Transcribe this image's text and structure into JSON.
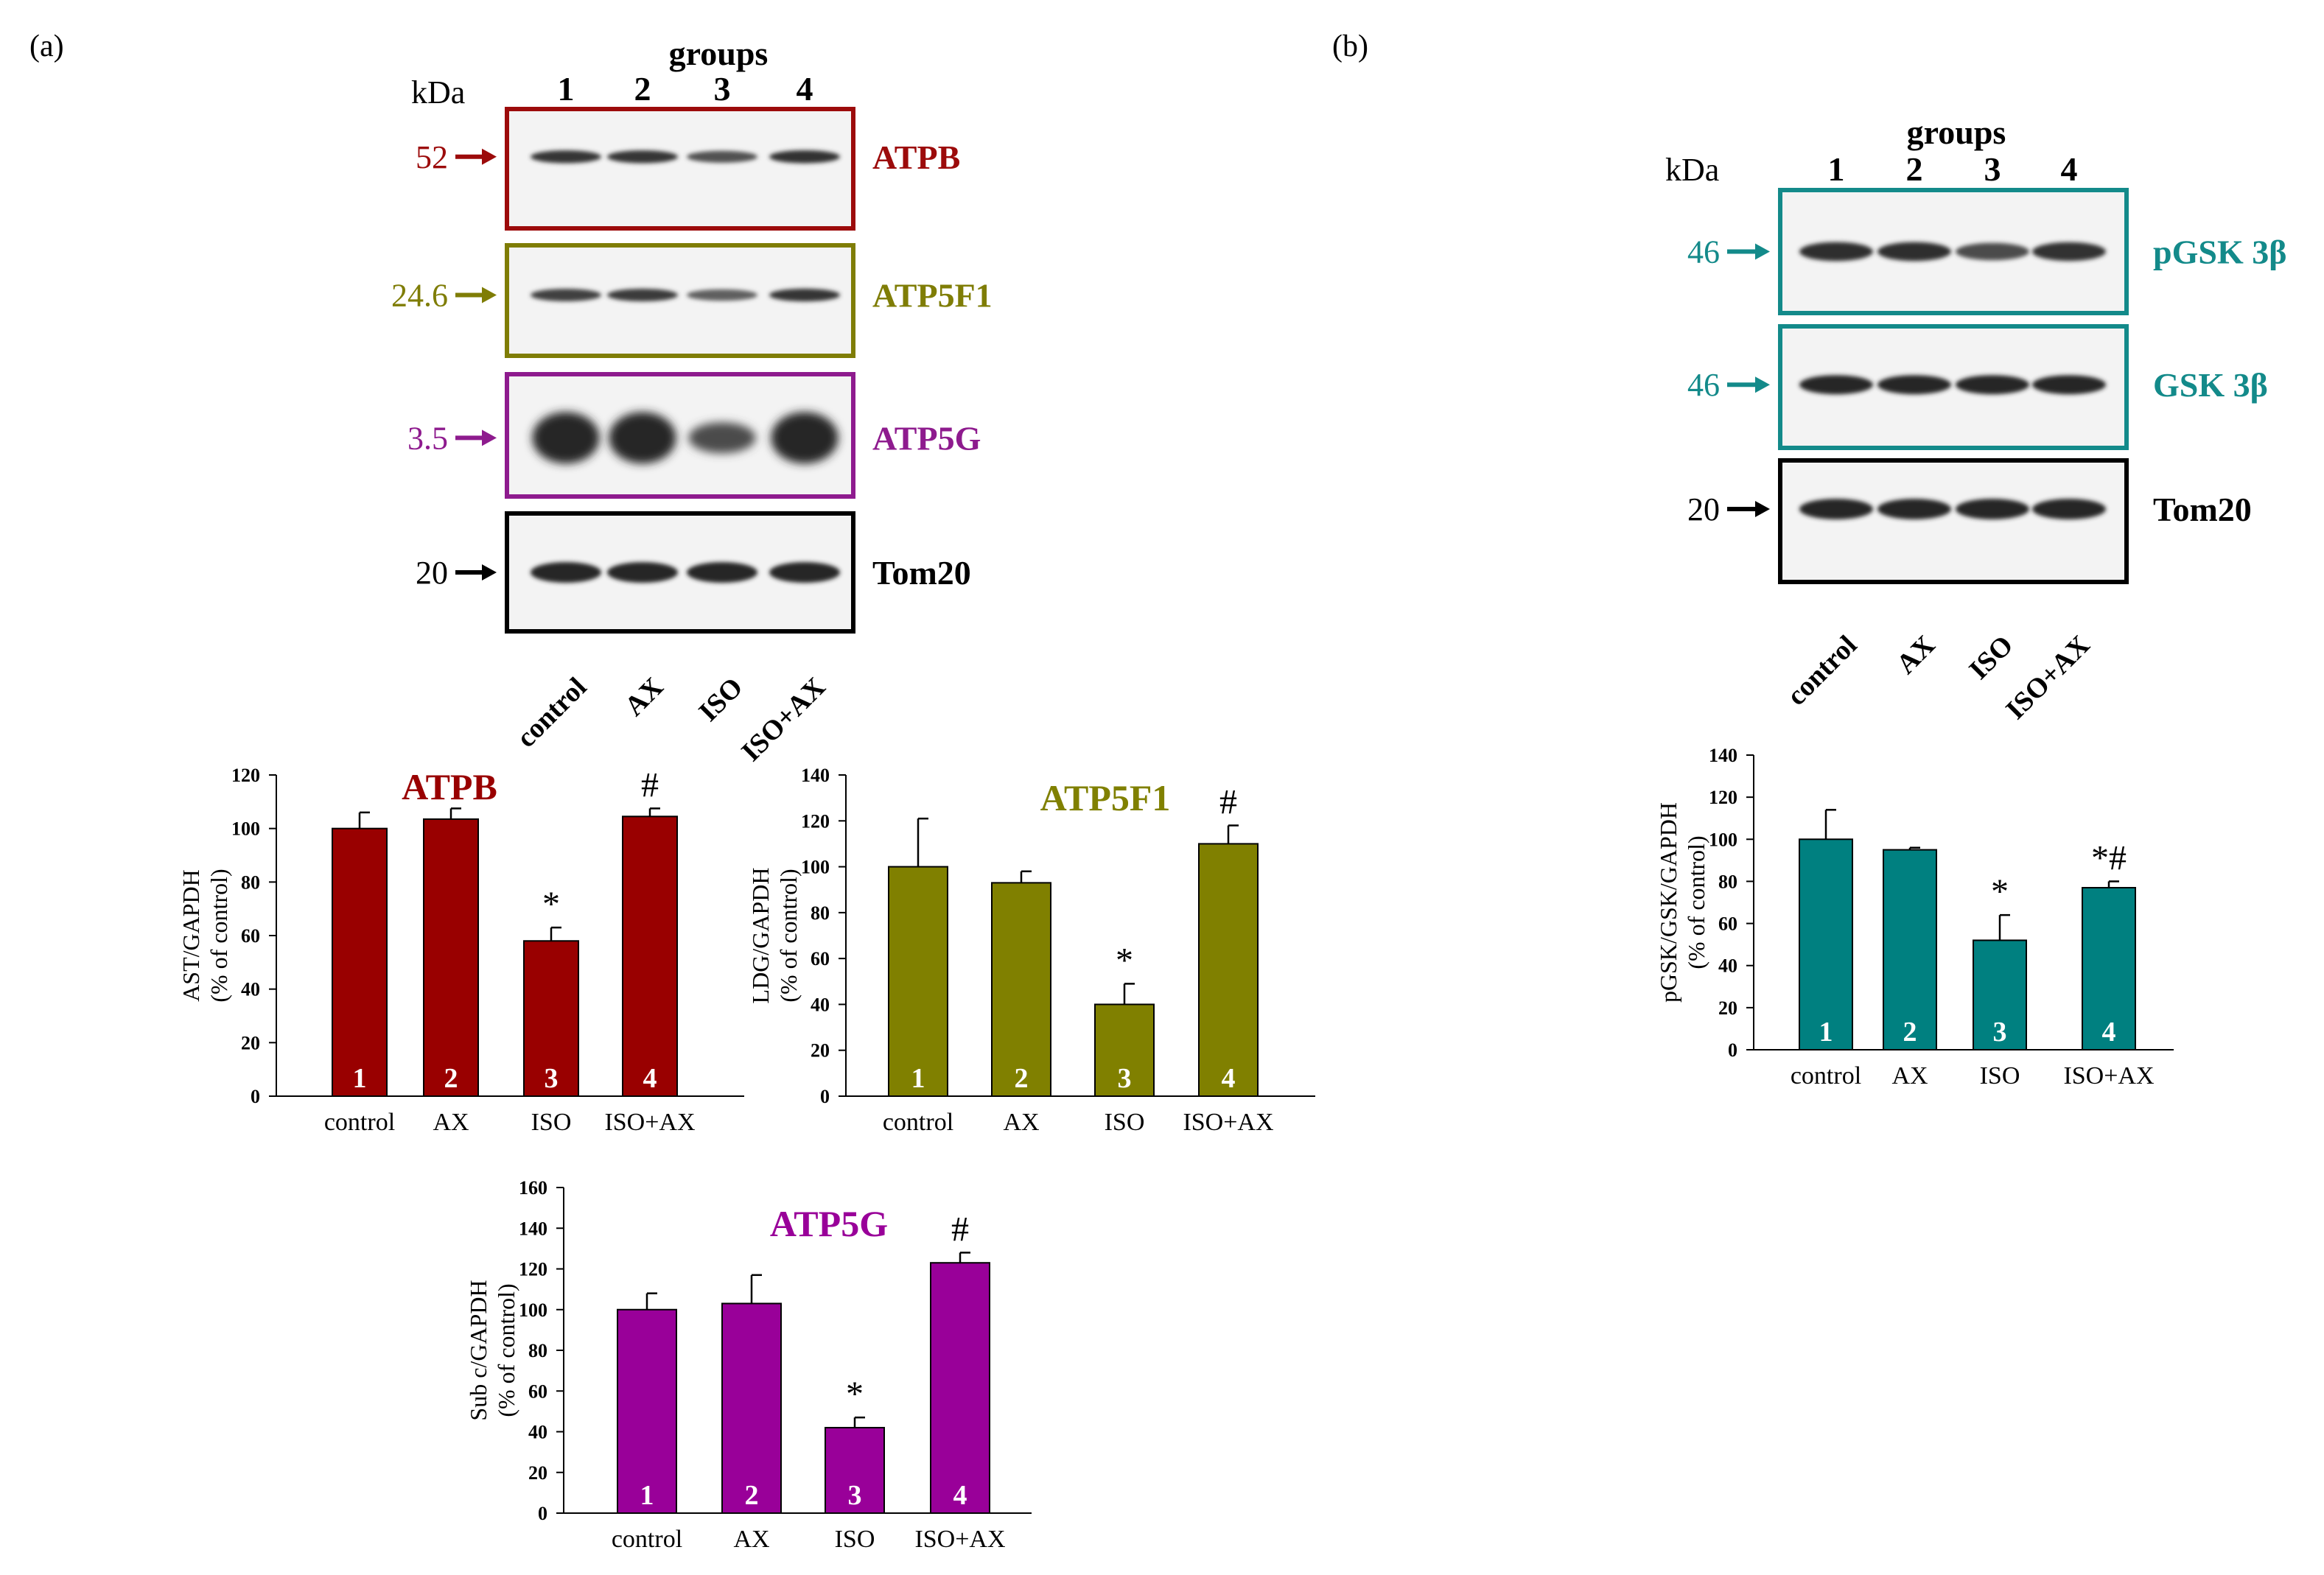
{
  "panel_a": {
    "label": "(a)",
    "kda_label": "kDa",
    "groups_label": "groups",
    "group_numbers": [
      "1",
      "2",
      "3",
      "4"
    ],
    "lane_labels": [
      "control",
      "AX",
      "ISO",
      "ISO+AX"
    ],
    "blots": [
      {
        "name": "ATPB",
        "kda": "52",
        "color": "#9c0b0b",
        "bands": [
          0.85,
          0.85,
          0.55,
          0.9
        ],
        "thickness": "thin"
      },
      {
        "name": "ATP5F1",
        "kda": "24.6",
        "color": "#7f7d06",
        "bands": [
          0.75,
          0.8,
          0.4,
          0.85
        ],
        "thickness": "thin"
      },
      {
        "name": "ATP5G",
        "kda": "3.5",
        "color": "#8e1b8e",
        "bands": [
          1.0,
          1.0,
          0.6,
          1.0
        ],
        "thickness": "blob"
      },
      {
        "name": "Tom20",
        "kda": "20",
        "color": "#000000",
        "bands": [
          1.0,
          1.0,
          1.0,
          1.0
        ],
        "thickness": "thick"
      }
    ]
  },
  "panel_b": {
    "label": "(b)",
    "kda_label": "kDa",
    "groups_label": "groups",
    "group_numbers": [
      "1",
      "2",
      "3",
      "4"
    ],
    "lane_labels": [
      "control",
      "AX",
      "ISO",
      "ISO+AX"
    ],
    "blots": [
      {
        "name": "pGSK 3β",
        "kda": "46",
        "color": "#138a8a",
        "bands": [
          0.95,
          0.95,
          0.6,
          0.9
        ],
        "thickness": "mid"
      },
      {
        "name": "GSK 3β",
        "kda": "46",
        "color": "#138a8a",
        "bands": [
          1.0,
          1.0,
          1.0,
          1.0
        ],
        "thickness": "mid"
      },
      {
        "name": "Tom20",
        "kda": "20",
        "color": "#000000",
        "bands": [
          1.0,
          1.0,
          1.0,
          1.0
        ],
        "thickness": "thick"
      }
    ]
  },
  "chart_data": [
    {
      "type": "bar",
      "title": "ATPB",
      "color": "#990000",
      "ylabel_line1": "AST/GAPDH",
      "ylabel_line2": "(% of control)",
      "categories": [
        "control",
        "AX",
        "ISO",
        "ISO+AX"
      ],
      "bar_numbers": [
        "1",
        "2",
        "3",
        "4"
      ],
      "values": [
        100,
        103.5,
        58,
        104.5
      ],
      "errors": [
        6,
        4,
        5,
        3
      ],
      "annotations": [
        "",
        "",
        "*",
        "#"
      ],
      "ylim": [
        0,
        120
      ],
      "yticks": [
        0,
        20,
        40,
        60,
        80,
        100,
        120
      ]
    },
    {
      "type": "bar",
      "title": "ATP5F1",
      "color": "#808000",
      "ylabel_line1": "LDG/GAPDH",
      "ylabel_line2": "(% of control)",
      "categories": [
        "control",
        "AX",
        "ISO",
        "ISO+AX"
      ],
      "bar_numbers": [
        "1",
        "2",
        "3",
        "4"
      ],
      "values": [
        100,
        93,
        40,
        110
      ],
      "errors": [
        21,
        5,
        9,
        8
      ],
      "annotations": [
        "",
        "",
        "*",
        "#"
      ],
      "ylim": [
        0,
        140
      ],
      "yticks": [
        0,
        20,
        40,
        60,
        80,
        100,
        120,
        140
      ]
    },
    {
      "type": "bar",
      "title": "ATP5G",
      "color": "#990099",
      "ylabel_line1": "Sub c/GAPDH",
      "ylabel_line2": "(% of control)",
      "categories": [
        "control",
        "AX",
        "ISO",
        "ISO+AX"
      ],
      "bar_numbers": [
        "1",
        "2",
        "3",
        "4"
      ],
      "values": [
        100,
        103,
        42,
        123
      ],
      "errors": [
        8,
        14,
        5,
        5
      ],
      "annotations": [
        "",
        "",
        "*",
        "#"
      ],
      "ylim": [
        0,
        160
      ],
      "yticks": [
        0,
        20,
        40,
        60,
        80,
        100,
        120,
        140,
        160
      ]
    },
    {
      "type": "bar",
      "title": "",
      "color": "#008080",
      "ylabel_line1": "pGSK/GSK/GAPDH",
      "ylabel_line2": "(% of control)",
      "categories": [
        "control",
        "AX",
        "ISO",
        "ISO+AX"
      ],
      "bar_numbers": [
        "1",
        "2",
        "3",
        "4"
      ],
      "values": [
        100,
        95,
        52,
        77
      ],
      "errors": [
        14,
        1,
        12,
        3
      ],
      "annotations": [
        "",
        "",
        "*",
        "*#"
      ],
      "ylim": [
        0,
        140
      ],
      "yticks": [
        0,
        20,
        40,
        60,
        80,
        100,
        120,
        140
      ]
    }
  ]
}
